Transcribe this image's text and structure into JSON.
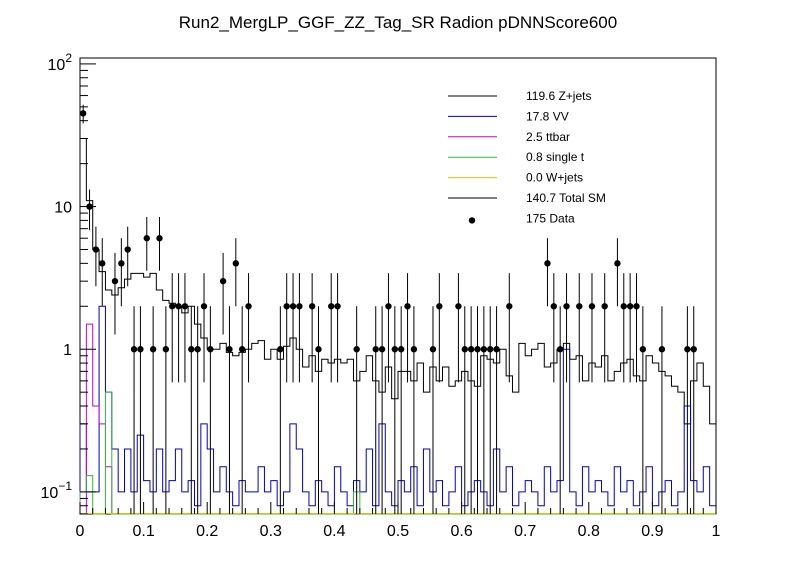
{
  "chart_data": {
    "type": "histogram",
    "title": "Run2_MergLP_GGF_ZZ_Tag_SR Radion  pDNNScore600",
    "xlabel": "",
    "ylabel": "",
    "xlim": [
      0,
      1
    ],
    "ylim": [
      0.07,
      110
    ],
    "yscale": "log",
    "n_bins": 100,
    "x_ticks": [
      {
        "value": 0,
        "label": "0"
      },
      {
        "value": 0.1,
        "label": "0.1"
      },
      {
        "value": 0.2,
        "label": "0.2"
      },
      {
        "value": 0.3,
        "label": "0.3"
      },
      {
        "value": 0.4,
        "label": "0.4"
      },
      {
        "value": 0.5,
        "label": "0.5"
      },
      {
        "value": 0.6,
        "label": "0.6"
      },
      {
        "value": 0.7,
        "label": "0.7"
      },
      {
        "value": 0.8,
        "label": "0.8"
      },
      {
        "value": 0.9,
        "label": "0.9"
      },
      {
        "value": 1,
        "label": "1"
      }
    ],
    "y_ticks": [
      {
        "value": 0.1,
        "base": "10",
        "exp": "−1"
      },
      {
        "value": 1,
        "base": "1",
        "exp": ""
      },
      {
        "value": 10,
        "base": "10",
        "exp": ""
      },
      {
        "value": 100,
        "base": "10",
        "exp": "2"
      }
    ],
    "legend": [
      {
        "label": "119.6 Z+jets",
        "color": "#000000",
        "marker": "line"
      },
      {
        "label": "17.8 VV",
        "color": "#0000cc",
        "marker": "line"
      },
      {
        "label": "2.5 ttbar",
        "color": "#cc00cc",
        "marker": "line"
      },
      {
        "label": "0.8 single t",
        "color": "#33bb33",
        "marker": "line"
      },
      {
        "label": "0.0 W+jets",
        "color": "#e6c000",
        "marker": "line"
      },
      {
        "label": "140.7 Total SM",
        "color": "#000000",
        "marker": "line"
      },
      {
        "label": "175 Data",
        "color": "#000000",
        "marker": "dot"
      }
    ],
    "series": [
      {
        "name": "Total SM",
        "color": "#000000",
        "values": [
          30,
          11,
          5,
          3.5,
          2.6,
          2.4,
          2.7,
          3.1,
          3.4,
          3.4,
          3.2,
          3.4,
          2.6,
          2.2,
          2.1,
          2.0,
          1.8,
          2.0,
          1.5,
          1.2,
          1.0,
          1.0,
          1.1,
          0.95,
          0.9,
          0.95,
          1.0,
          1.1,
          1.15,
          0.85,
          1.0,
          0.85,
          1.05,
          1.2,
          1.0,
          0.75,
          0.9,
          0.7,
          0.85,
          0.8,
          0.85,
          0.8,
          0.85,
          0.6,
          0.7,
          0.9,
          0.6,
          0.5,
          0.75,
          0.45,
          0.7,
          0.7,
          0.6,
          0.8,
          0.5,
          0.75,
          0.6,
          0.75,
          0.55,
          0.6,
          0.7,
          0.6,
          0.55,
          0.9,
          0.85,
          0.8,
          1.0,
          0.65,
          0.5,
          1.1,
          0.9,
          1.0,
          1.1,
          0.75,
          0.8,
          1.0,
          1.1,
          0.85,
          0.9,
          0.6,
          0.8,
          0.75,
          0.9,
          0.6,
          0.7,
          0.8,
          0.85,
          0.65,
          0.6,
          0.9,
          0.8,
          0.7,
          0.65,
          0.55,
          0.5,
          0.3,
          0.6,
          0.8,
          0.55,
          0.3
        ]
      },
      {
        "name": "VV",
        "color": "#0000cc",
        "values": [
          0.3,
          0.1,
          0.1,
          2.0,
          0.5,
          0.2,
          0.1,
          0.2,
          0.1,
          0.25,
          0.12,
          0.1,
          0.2,
          0.1,
          0.12,
          0.2,
          0.1,
          0.12,
          0.08,
          0.3,
          0.2,
          0.1,
          0.15,
          0.1,
          0.08,
          0.12,
          0.1,
          0.1,
          0.15,
          0.1,
          0.12,
          0.08,
          0.1,
          0.3,
          0.2,
          0.1,
          0.08,
          0.12,
          0.1,
          0.08,
          0.15,
          0.1,
          0.08,
          0.12,
          0.1,
          0.2,
          0.08,
          0.3,
          0.1,
          0.08,
          0.12,
          0.1,
          0.15,
          0.08,
          0.2,
          0.1,
          0.12,
          0.08,
          0.1,
          0.15,
          0.08,
          0.1,
          0.12,
          0.1,
          0.08,
          0.2,
          0.1,
          0.15,
          0.08,
          0.1,
          0.12,
          0.1,
          0.08,
          0.15,
          0.1,
          0.12,
          1.0,
          0.1,
          0.08,
          0.15,
          0.1,
          0.12,
          0.1,
          0.08,
          0.15,
          0.1,
          0.12,
          0.08,
          0.1,
          0.15,
          0.08,
          0.1,
          0.12,
          0.08,
          0.1,
          0.4,
          0.12,
          0.1,
          0.15,
          0.08
        ]
      },
      {
        "name": "ttbar",
        "color": "#cc00cc",
        "values": [
          0,
          1.5,
          0.4,
          0.3,
          0.15,
          0,
          0,
          0,
          0,
          0,
          0,
          0,
          0,
          0,
          0,
          0,
          0,
          0,
          0,
          0,
          0,
          0,
          0,
          0,
          0,
          0,
          0,
          0,
          0,
          0,
          0,
          0,
          0,
          0,
          0,
          0,
          0,
          0,
          0,
          0,
          0,
          0,
          0,
          0,
          0,
          0,
          0,
          0,
          0,
          0,
          0,
          0,
          0,
          0,
          0,
          0,
          0,
          0,
          0,
          0,
          0,
          0,
          0,
          0,
          0,
          0,
          0,
          0,
          0,
          0,
          0,
          0,
          0,
          0,
          0,
          0,
          0,
          0,
          0,
          0,
          0,
          0,
          0,
          0,
          0,
          0,
          0,
          0,
          0,
          0,
          0,
          0,
          0,
          0,
          0,
          0,
          0,
          0,
          0,
          0
        ]
      },
      {
        "name": "single t",
        "color": "#33bb33",
        "values": [
          0.1,
          0.13,
          0,
          0.05,
          0.5,
          0,
          0,
          0,
          0,
          0,
          0,
          0,
          0,
          0,
          0,
          0,
          0,
          0,
          0,
          0,
          0,
          0,
          0,
          0,
          0,
          0,
          0,
          0,
          0,
          0,
          0,
          0,
          0,
          0,
          0,
          0,
          0,
          0,
          0,
          0,
          0,
          0,
          0,
          0.1,
          0,
          0,
          0,
          0,
          0,
          0,
          0,
          0,
          0,
          0,
          0,
          0,
          0,
          0,
          0,
          0,
          0,
          0,
          0,
          0,
          0,
          0,
          0,
          0,
          0,
          0,
          0,
          0,
          0,
          0,
          0,
          0,
          0,
          0,
          0,
          0,
          0,
          0,
          0,
          0,
          0,
          0,
          0,
          0,
          0,
          0,
          0,
          0,
          0,
          0,
          0,
          0,
          0,
          0,
          0,
          0
        ]
      }
    ],
    "data_points": [
      {
        "x": 0.005,
        "y": 45
      },
      {
        "x": 0.015,
        "y": 10
      },
      {
        "x": 0.025,
        "y": 5
      },
      {
        "x": 0.035,
        "y": 4
      },
      {
        "x": 0.055,
        "y": 3
      },
      {
        "x": 0.065,
        "y": 4
      },
      {
        "x": 0.075,
        "y": 5
      },
      {
        "x": 0.085,
        "y": 1
      },
      {
        "x": 0.095,
        "y": 1
      },
      {
        "x": 0.105,
        "y": 6
      },
      {
        "x": 0.115,
        "y": 1
      },
      {
        "x": 0.125,
        "y": 6
      },
      {
        "x": 0.135,
        "y": 1
      },
      {
        "x": 0.145,
        "y": 2
      },
      {
        "x": 0.155,
        "y": 2
      },
      {
        "x": 0.165,
        "y": 2
      },
      {
        "x": 0.175,
        "y": 1
      },
      {
        "x": 0.185,
        "y": 1
      },
      {
        "x": 0.195,
        "y": 2
      },
      {
        "x": 0.205,
        "y": 1
      },
      {
        "x": 0.225,
        "y": 3
      },
      {
        "x": 0.235,
        "y": 1
      },
      {
        "x": 0.245,
        "y": 4
      },
      {
        "x": 0.255,
        "y": 1
      },
      {
        "x": 0.265,
        "y": 2
      },
      {
        "x": 0.315,
        "y": 1
      },
      {
        "x": 0.325,
        "y": 2
      },
      {
        "x": 0.335,
        "y": 2
      },
      {
        "x": 0.345,
        "y": 2
      },
      {
        "x": 0.365,
        "y": 2
      },
      {
        "x": 0.375,
        "y": 1
      },
      {
        "x": 0.395,
        "y": 2
      },
      {
        "x": 0.405,
        "y": 2
      },
      {
        "x": 0.435,
        "y": 1
      },
      {
        "x": 0.465,
        "y": 1
      },
      {
        "x": 0.475,
        "y": 1
      },
      {
        "x": 0.485,
        "y": 2
      },
      {
        "x": 0.495,
        "y": 1
      },
      {
        "x": 0.505,
        "y": 1
      },
      {
        "x": 0.515,
        "y": 2
      },
      {
        "x": 0.525,
        "y": 1
      },
      {
        "x": 0.555,
        "y": 1
      },
      {
        "x": 0.565,
        "y": 2
      },
      {
        "x": 0.595,
        "y": 2
      },
      {
        "x": 0.605,
        "y": 1
      },
      {
        "x": 0.615,
        "y": 1
      },
      {
        "x": 0.625,
        "y": 1
      },
      {
        "x": 0.635,
        "y": 1
      },
      {
        "x": 0.645,
        "y": 1
      },
      {
        "x": 0.655,
        "y": 1
      },
      {
        "x": 0.675,
        "y": 2
      },
      {
        "x": 0.735,
        "y": 4
      },
      {
        "x": 0.745,
        "y": 2
      },
      {
        "x": 0.755,
        "y": 1
      },
      {
        "x": 0.765,
        "y": 2
      },
      {
        "x": 0.785,
        "y": 2
      },
      {
        "x": 0.805,
        "y": 2
      },
      {
        "x": 0.825,
        "y": 2
      },
      {
        "x": 0.845,
        "y": 4
      },
      {
        "x": 0.855,
        "y": 2
      },
      {
        "x": 0.865,
        "y": 2
      },
      {
        "x": 0.875,
        "y": 2
      },
      {
        "x": 0.885,
        "y": 1
      },
      {
        "x": 0.915,
        "y": 1
      },
      {
        "x": 0.955,
        "y": 1
      },
      {
        "x": 0.965,
        "y": 1
      }
    ]
  }
}
